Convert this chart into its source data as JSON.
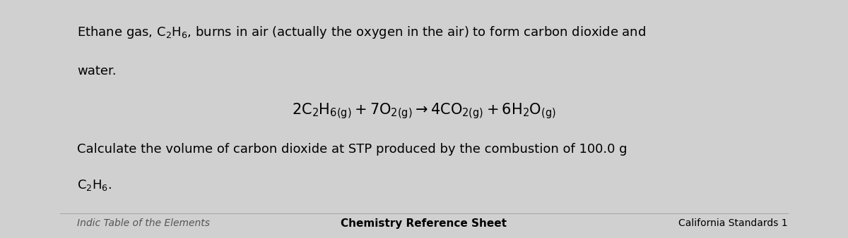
{
  "bg_color": "#d0d0d0",
  "content_bg": "#efefef",
  "line1": "Ethane gas, $\\mathrm{C_2H_6}$, burns in air (actually the oxygen in the air) to form carbon dioxide and",
  "line2": "water.",
  "equation": "$\\mathrm{2C_2H_{6(g)} + 7O_{2(g)} \\rightarrow 4CO_{2(g)} + 6H_2O_{(g)}}$",
  "question_line1": "Calculate the volume of carbon dioxide at STP produced by the combustion of 100.0 g",
  "question_line2": "$\\mathrm{C_2H_6}$.",
  "footer_left": "Indic Table of the Elements",
  "footer_center": "Chemistry Reference Sheet",
  "footer_right": "California Standards 1",
  "font_size_main": 13,
  "font_size_eq": 15,
  "font_size_footer": 10
}
